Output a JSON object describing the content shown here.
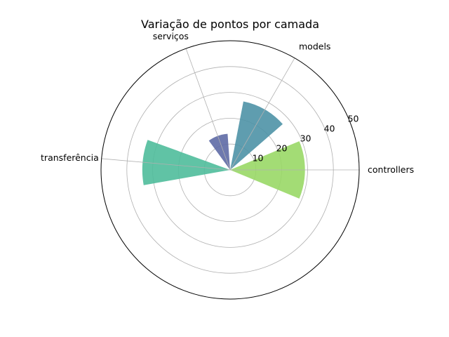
{
  "chart_data": {
    "type": "bar",
    "subtype": "polar",
    "title": "Variação de pontos por camada",
    "categories": [
      "controllers",
      "models",
      "serviços",
      "transferência"
    ],
    "values": [
      29,
      27,
      14,
      34
    ],
    "theta_deg": [
      0,
      60,
      110,
      175
    ],
    "bar_width_deg": [
      45,
      38,
      32,
      30
    ],
    "colors": [
      "#99d866",
      "#4e92a6",
      "#5e6aa5",
      "#4fbd9b"
    ],
    "bar_alpha": 0.9,
    "rlim": [
      0,
      50
    ],
    "r_ticks": [
      10,
      20,
      30,
      40,
      50
    ],
    "grid": true
  }
}
